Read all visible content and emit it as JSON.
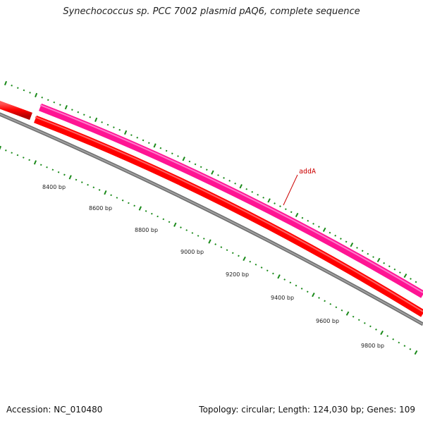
{
  "title": "Synechococcus sp. PCC 7002 plasmid pAQ6, complete sequence",
  "accession": "Accession: NC_010480",
  "stats": "Topology: circular; Length: 124,030 bp; Genes: 109",
  "gene_labels": [
    {
      "name": "addA",
      "color": "#cc0000"
    }
  ],
  "scale_labels": [
    "8400 bp",
    "8600 bp",
    "8800 bp",
    "9000 bp",
    "9200 bp",
    "9400 bp",
    "9600 bp",
    "9800 bp"
  ],
  "colors": {
    "feature_forward": "#ff1493",
    "feature_reverse": "#ff0000",
    "backbone": "#808080",
    "tick_marks": "#1a8a1a"
  }
}
